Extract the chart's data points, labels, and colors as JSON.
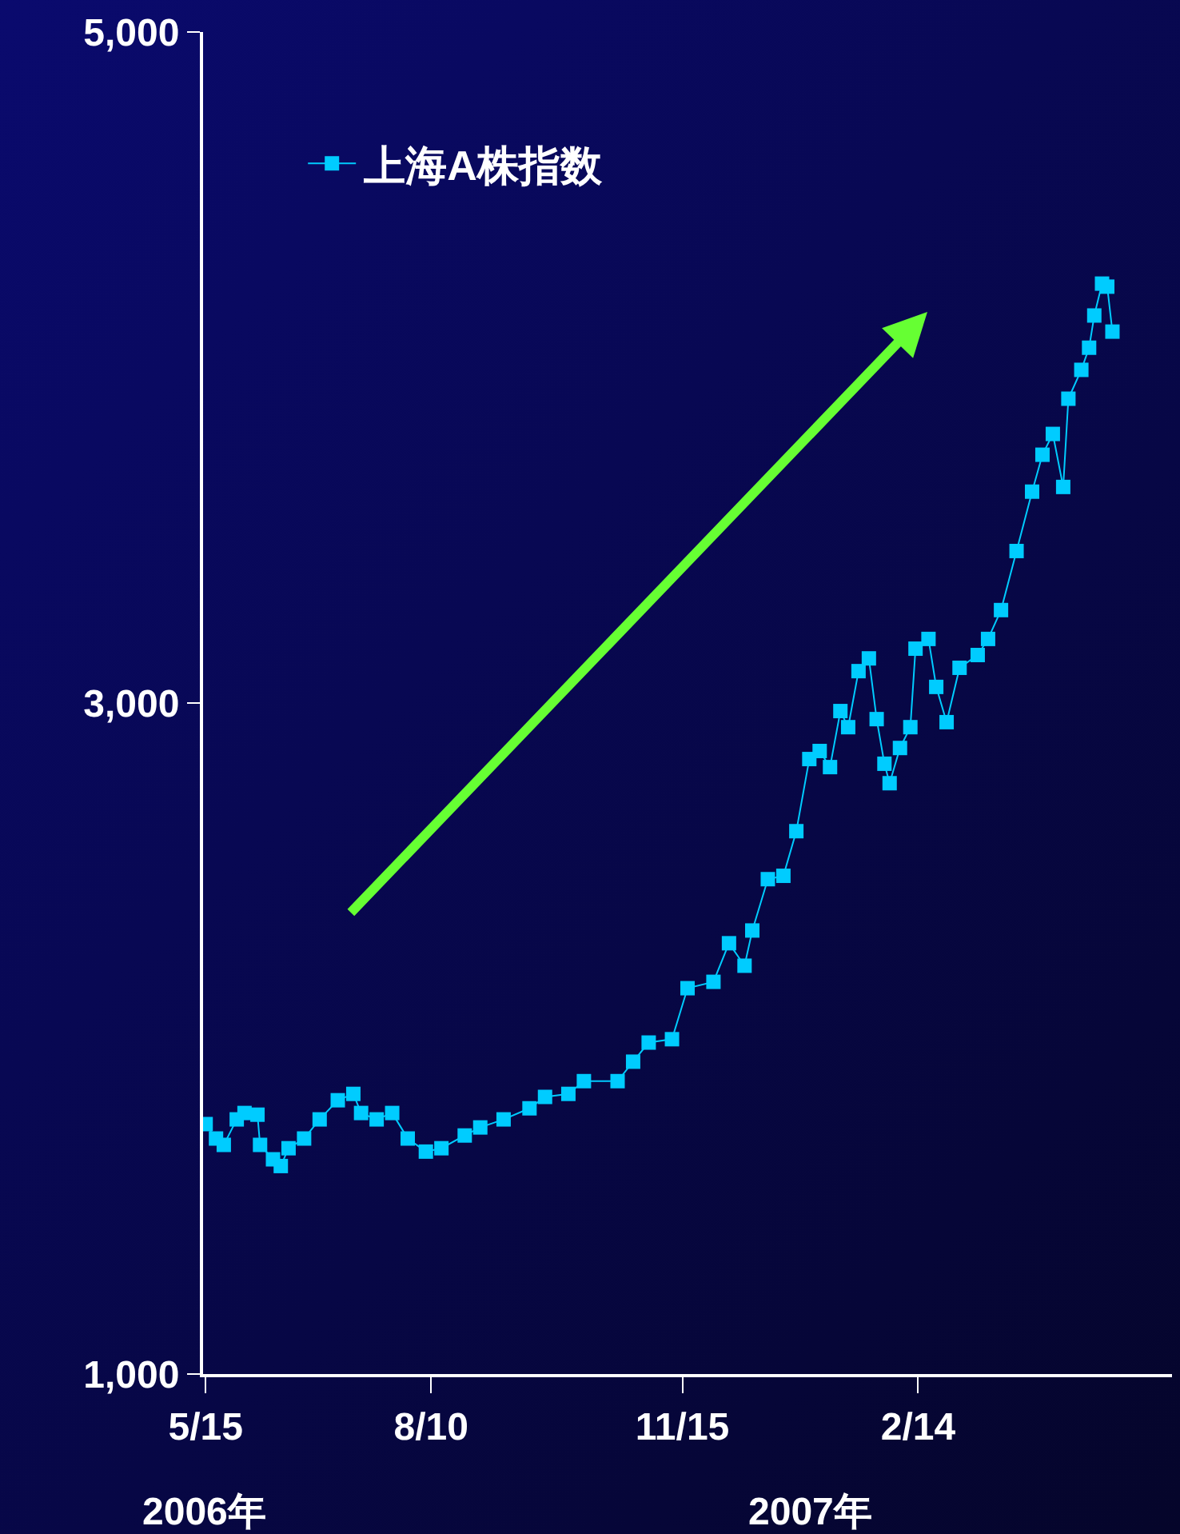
{
  "chart_data": {
    "type": "line",
    "marker": "square",
    "line_style": "solid",
    "legend": "top left",
    "grid": false,
    "x": [
      "2006-05-15",
      "2006-05-19",
      "2006-05-22",
      "2006-05-27",
      "2006-05-30",
      "2006-06-04",
      "2006-06-05",
      "2006-06-10",
      "2006-06-13",
      "2006-06-16",
      "2006-06-22",
      "2006-06-28",
      "2006-07-05",
      "2006-07-11",
      "2006-07-14",
      "2006-07-20",
      "2006-07-26",
      "2006-08-01",
      "2006-08-08",
      "2006-08-14",
      "2006-08-23",
      "2006-08-29",
      "2006-09-07",
      "2006-09-17",
      "2006-09-23",
      "2006-10-02",
      "2006-10-08",
      "2006-10-21",
      "2006-10-27",
      "2006-11-02",
      "2006-11-11",
      "2006-11-17",
      "2006-11-27",
      "2006-12-03",
      "2006-12-09",
      "2006-12-12",
      "2006-12-18",
      "2006-12-24",
      "2006-12-29",
      "2007-01-03",
      "2007-01-07",
      "2007-01-11",
      "2007-01-15",
      "2007-01-18",
      "2007-01-22",
      "2007-01-26",
      "2007-01-29",
      "2007-02-01",
      "2007-02-03",
      "2007-02-07",
      "2007-02-11",
      "2007-02-13",
      "2007-02-18",
      "2007-02-21",
      "2007-02-25",
      "2007-03-02",
      "2007-03-09",
      "2007-03-13",
      "2007-03-18",
      "2007-03-24",
      "2007-03-30",
      "2007-04-03",
      "2007-04-07",
      "2007-04-11",
      "2007-04-13",
      "2007-04-18",
      "2007-04-21",
      "2007-04-23",
      "2007-04-26",
      "2007-04-28",
      "2007-04-30"
    ],
    "series": [
      {
        "name": "上海A株指数",
        "color": "#00ccff",
        "values": [
          1745,
          1702,
          1683,
          1759,
          1778,
          1773,
          1683,
          1640,
          1620,
          1673,
          1702,
          1759,
          1816,
          1835,
          1778,
          1759,
          1778,
          1702,
          1663,
          1673,
          1711,
          1735,
          1759,
          1792,
          1826,
          1835,
          1873,
          1873,
          1931,
          1988,
          1998,
          2150,
          2169,
          2284,
          2217,
          2322,
          2475,
          2485,
          2618,
          2833,
          2857,
          2809,
          2976,
          2928,
          3095,
          3133,
          2952,
          2819,
          2761,
          2866,
          2928,
          3162,
          3191,
          3048,
          2943,
          3105,
          3143,
          3191,
          3277,
          3453,
          3630,
          3740,
          3802,
          3644,
          3907,
          3993,
          4059,
          4155,
          4250,
          4241,
          4107
        ]
      }
    ],
    "xlim": [
      "2006-05-14",
      "2007-05-23"
    ],
    "xticks": [
      {
        "value": "2006-05-15",
        "label": "5/15"
      },
      {
        "value": "2006-08-10",
        "label": "8/10"
      },
      {
        "value": "2006-11-15",
        "label": "11/15"
      },
      {
        "value": "2007-02-14",
        "label": "2/14"
      }
    ],
    "ylim": [
      1000,
      5000
    ],
    "yticks": [
      {
        "value": 1000,
        "label": "1,000"
      },
      {
        "value": 3000,
        "label": "3,000"
      },
      {
        "value": 5000,
        "label": "5,000"
      }
    ],
    "annotations": [
      "2006年",
      "2007年"
    ]
  }
}
